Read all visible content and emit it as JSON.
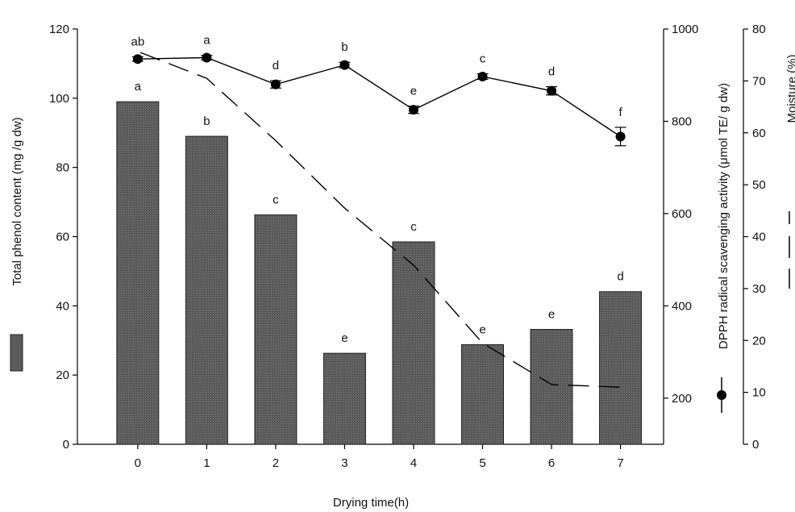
{
  "chart_data": {
    "type": "bar",
    "xlabel": "Drying time(h)",
    "categories": [
      "0",
      "1",
      "2",
      "3",
      "4",
      "5",
      "6",
      "7"
    ],
    "series": [
      {
        "name": "Total phenol content (mg /g dw)",
        "type": "bar",
        "axis": "left",
        "values": [
          99,
          89,
          66.3,
          26.3,
          58.5,
          28.8,
          33.2,
          44.1
        ],
        "letters": [
          "a",
          "b",
          "c",
          "e",
          "c",
          "e",
          "e",
          "d"
        ]
      },
      {
        "name": "DPPH radical scavenging activity  (μmol TE/ g dw)",
        "type": "line",
        "axis": "right1",
        "marker": "filled-circle",
        "values": [
          935,
          938,
          880,
          922,
          825,
          897,
          866,
          767
        ],
        "errors": [
          5,
          5,
          8,
          6,
          8,
          6,
          9,
          20
        ],
        "letters": [
          "ab",
          "a",
          "d",
          "b",
          "e",
          "c",
          "d",
          "f"
        ]
      },
      {
        "name": "Moisture (%)",
        "type": "line",
        "axis": "right2",
        "style": "dashed",
        "values": [
          75.5,
          70.5,
          58.5,
          45.5,
          34.5,
          19.5,
          11.5,
          11
        ]
      }
    ],
    "axes": {
      "left": {
        "label": "Total phenol content (mg /g dw)",
        "range": [
          0,
          120
        ],
        "ticks": [
          0,
          20,
          40,
          60,
          80,
          100,
          120
        ]
      },
      "right1": {
        "label": "DPPH radical scavenging activity  (μmol TE/ g dw)",
        "range": [
          100,
          1000
        ],
        "ticks": [
          200,
          400,
          600,
          800,
          1000
        ]
      },
      "right2": {
        "label": "Moisture (%)",
        "range": [
          0,
          80
        ],
        "ticks": [
          0,
          10,
          20,
          30,
          40,
          50,
          60,
          70,
          80
        ]
      }
    },
    "grid": false,
    "colors": {
      "bar_fill": "#5b5b5b",
      "line": "#000000"
    }
  }
}
